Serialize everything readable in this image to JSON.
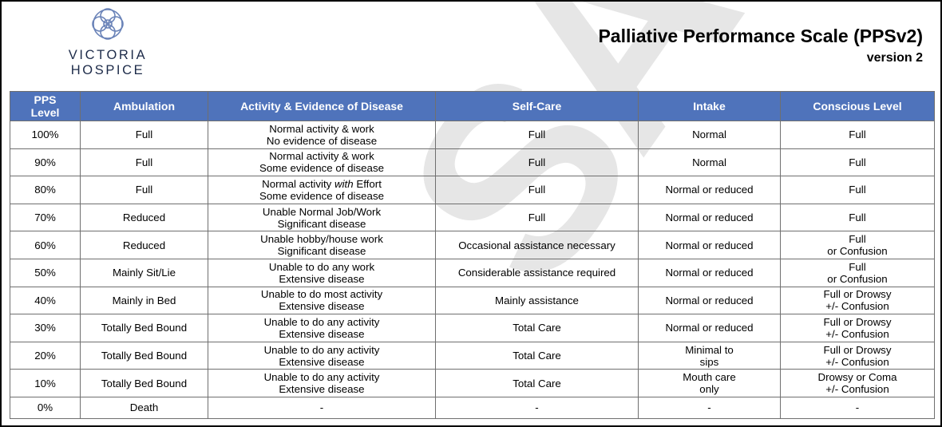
{
  "logo": {
    "name_line1": "VICTORIA",
    "name_line2": "HOSPICE"
  },
  "title": "Palliative Performance Scale (PPSv2)",
  "subtitle": "version 2",
  "watermark": "SAMPLE",
  "colors": {
    "header_bg": "#4f73bb",
    "header_text": "#ffffff",
    "border": "#6f6f6f",
    "logo": "#1d2b49"
  },
  "table": {
    "headers": [
      "PPS Level",
      "Ambulation",
      "Activity & Evidence of Disease",
      "Self-Care",
      "Intake",
      "Conscious Level"
    ],
    "header_pps_line1": "PPS",
    "header_pps_line2": "Level",
    "rows": [
      {
        "level": "100%",
        "ambulation": "Full",
        "activity1": "Normal activity & work",
        "activity2": "No evidence of disease",
        "selfcare": "Full",
        "intake1": "Normal",
        "intake2": "",
        "conscious1": "Full",
        "conscious2": ""
      },
      {
        "level": "90%",
        "ambulation": "Full",
        "activity1": "Normal activity & work",
        "activity2": "Some evidence of disease",
        "selfcare": "Full",
        "intake1": "Normal",
        "intake2": "",
        "conscious1": "Full",
        "conscious2": ""
      },
      {
        "level": "80%",
        "ambulation": "Full",
        "activity1a": "Normal activity ",
        "activity1b": "with",
        "activity1c": " Effort",
        "activity2": "Some evidence of disease",
        "selfcare": "Full",
        "intake1": "Normal or reduced",
        "intake2": "",
        "conscious1": "Full",
        "conscious2": ""
      },
      {
        "level": "70%",
        "ambulation": "Reduced",
        "activity1": "Unable Normal Job/Work",
        "activity2": "Significant disease",
        "selfcare": "Full",
        "intake1": "Normal or reduced",
        "intake2": "",
        "conscious1": "Full",
        "conscious2": ""
      },
      {
        "level": "60%",
        "ambulation": "Reduced",
        "activity1": "Unable hobby/house work",
        "activity2": "Significant disease",
        "selfcare": "Occasional assistance necessary",
        "intake1": "Normal or reduced",
        "intake2": "",
        "conscious1": "Full",
        "conscious2": "or Confusion"
      },
      {
        "level": "50%",
        "ambulation": "Mainly Sit/Lie",
        "activity1": "Unable to do any work",
        "activity2": "Extensive disease",
        "selfcare": "Considerable assistance required",
        "intake1": "Normal or reduced",
        "intake2": "",
        "conscious1": "Full",
        "conscious2": "or Confusion"
      },
      {
        "level": "40%",
        "ambulation": "Mainly in Bed",
        "activity1": "Unable to do most activity",
        "activity2": "Extensive disease",
        "selfcare": "Mainly assistance",
        "intake1": "Normal or reduced",
        "intake2": "",
        "conscious1": "Full or Drowsy",
        "conscious2": "+/- Confusion"
      },
      {
        "level": "30%",
        "ambulation": "Totally Bed Bound",
        "activity1": "Unable to do any activity",
        "activity2": "Extensive disease",
        "selfcare": "Total Care",
        "intake1": "Normal or reduced",
        "intake2": "",
        "conscious1": "Full or Drowsy",
        "conscious2": "+/- Confusion"
      },
      {
        "level": "20%",
        "ambulation": "Totally Bed Bound",
        "activity1": "Unable to do any activity",
        "activity2": "Extensive disease",
        "selfcare": "Total Care",
        "intake1": "Minimal to",
        "intake2": "sips",
        "conscious1": "Full or Drowsy",
        "conscious2": "+/- Confusion"
      },
      {
        "level": "10%",
        "ambulation": "Totally Bed Bound",
        "activity1": "Unable to do any activity",
        "activity2": "Extensive disease",
        "selfcare": "Total Care",
        "intake1": "Mouth care",
        "intake2": "only",
        "conscious1": "Drowsy or Coma",
        "conscious2": "+/- Confusion"
      },
      {
        "level": "0%",
        "ambulation": "Death",
        "activity1": "-",
        "activity2": "",
        "selfcare": "-",
        "intake1": "-",
        "intake2": "",
        "conscious1": "-",
        "conscious2": ""
      }
    ]
  }
}
